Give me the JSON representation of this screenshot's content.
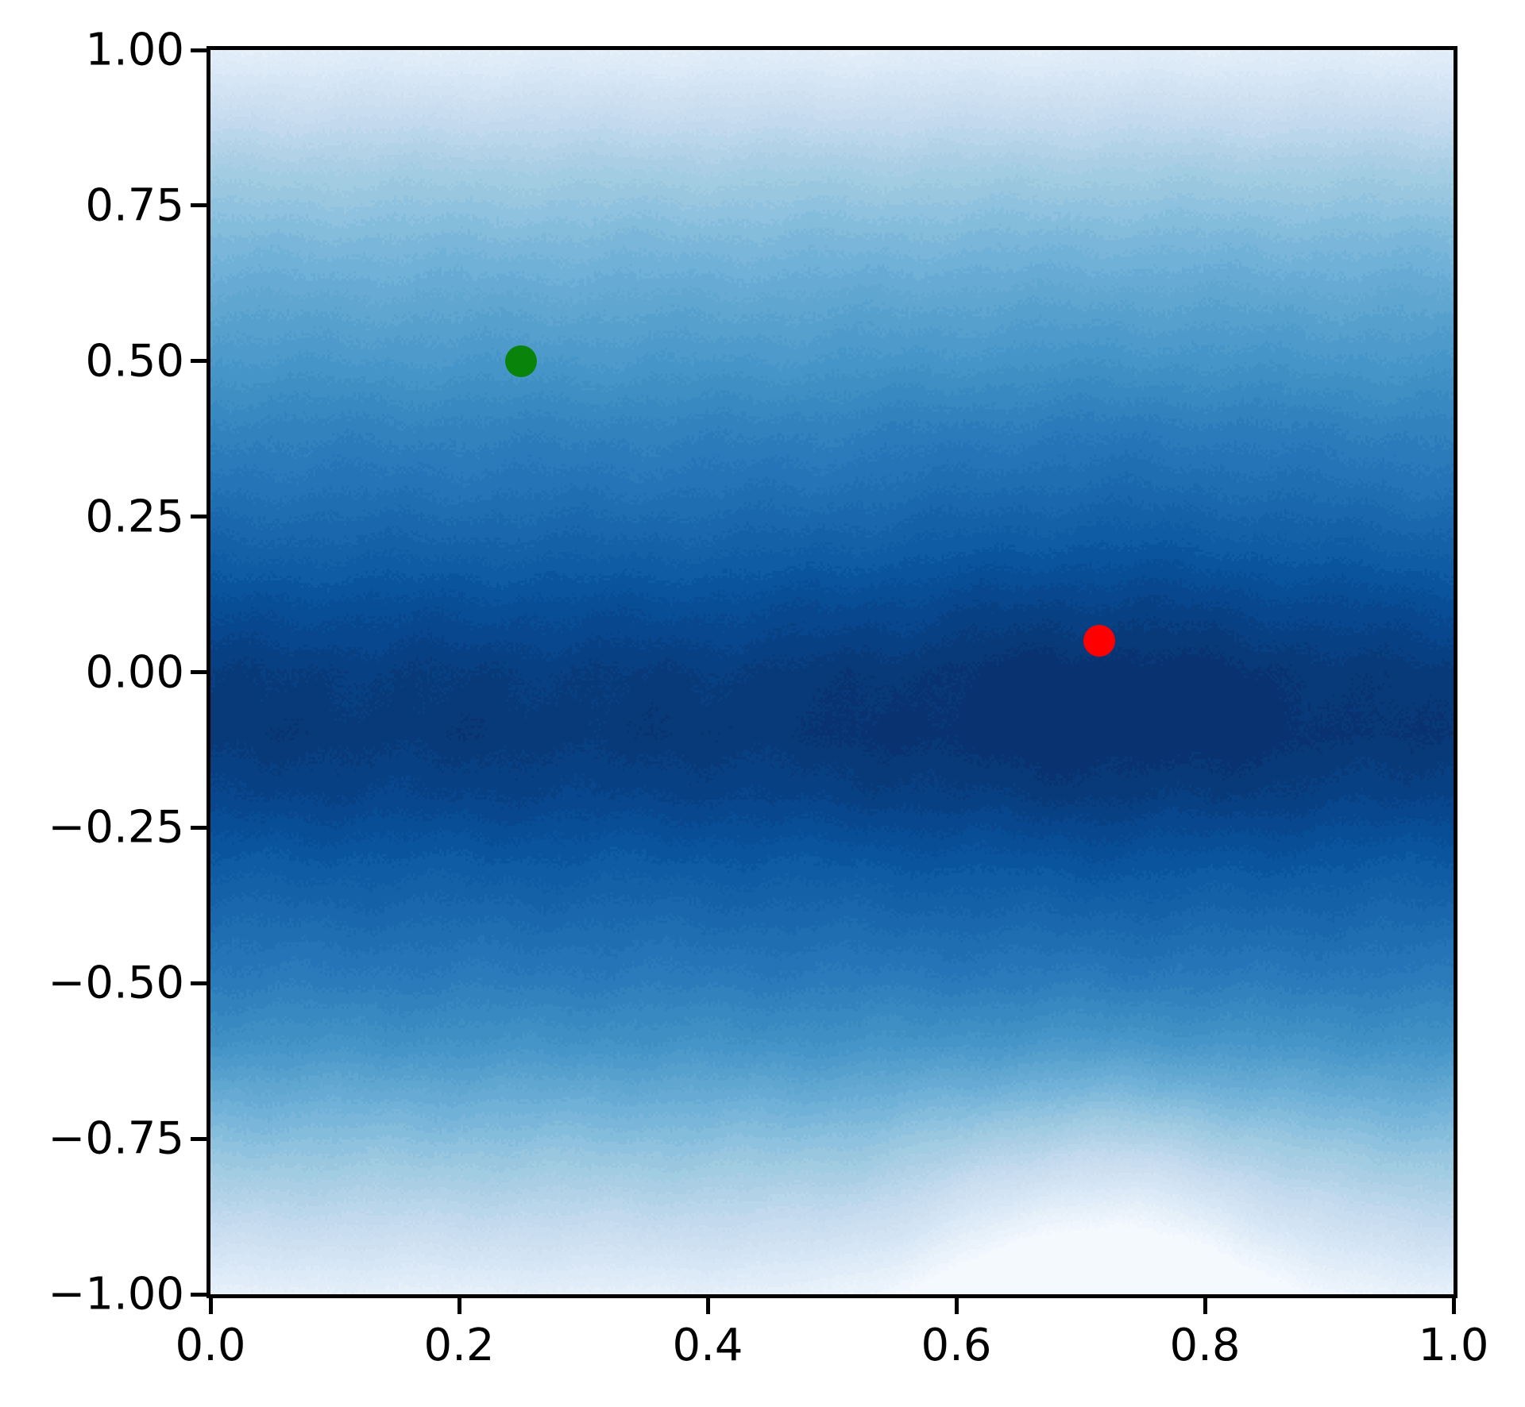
{
  "chart_data": {
    "type": "contourf-scatter",
    "title": "",
    "xlabel": "",
    "ylabel": "",
    "xlim": [
      0.0,
      1.0
    ],
    "ylim": [
      -1.0,
      1.0
    ],
    "grid": false,
    "legend": null,
    "x_ticks": [
      {
        "v": 0.0,
        "label": "0.0"
      },
      {
        "v": 0.2,
        "label": "0.2"
      },
      {
        "v": 0.4,
        "label": "0.4"
      },
      {
        "v": 0.6,
        "label": "0.6"
      },
      {
        "v": 0.8,
        "label": "0.8"
      },
      {
        "v": 1.0,
        "label": "1.0"
      }
    ],
    "y_ticks": [
      {
        "v": 1.0,
        "label": "1.00"
      },
      {
        "v": 0.75,
        "label": "0.75"
      },
      {
        "v": 0.5,
        "label": "0.50"
      },
      {
        "v": 0.25,
        "label": "0.25"
      },
      {
        "v": 0.0,
        "label": "0.00"
      },
      {
        "v": -0.25,
        "label": "−0.25"
      },
      {
        "v": -0.5,
        "label": "−0.50"
      },
      {
        "v": -0.75,
        "label": "−0.75"
      },
      {
        "v": -1.0,
        "label": "−1.00"
      }
    ],
    "colormap": "Blues",
    "colormap_stops": [
      [
        0.0,
        "#f7fbff"
      ],
      [
        0.125,
        "#deebf7"
      ],
      [
        0.25,
        "#c6dbef"
      ],
      [
        0.375,
        "#9ecae1"
      ],
      [
        0.5,
        "#6baed6"
      ],
      [
        0.625,
        "#4292c6"
      ],
      [
        0.75,
        "#2171b5"
      ],
      [
        0.875,
        "#08519c"
      ],
      [
        1.0,
        "#08306b"
      ]
    ],
    "contour_levels": 40,
    "intensity_profile": [
      [
        1.0,
        0.1
      ],
      [
        0.9,
        0.24
      ],
      [
        0.8,
        0.36
      ],
      [
        0.7,
        0.45
      ],
      [
        0.6,
        0.53
      ],
      [
        0.5,
        0.6
      ],
      [
        0.4,
        0.68
      ],
      [
        0.3,
        0.74
      ],
      [
        0.2,
        0.81
      ],
      [
        0.1,
        0.89
      ],
      [
        0.0,
        0.95
      ],
      [
        -0.1,
        0.965
      ],
      [
        -0.2,
        0.925
      ],
      [
        -0.3,
        0.85
      ],
      [
        -0.4,
        0.78
      ],
      [
        -0.5,
        0.71
      ],
      [
        -0.6,
        0.62
      ],
      [
        -0.7,
        0.49
      ],
      [
        -0.8,
        0.37
      ],
      [
        -0.9,
        0.24
      ],
      [
        -1.0,
        0.09
      ]
    ],
    "field_bumps": [
      {
        "cx": 0.72,
        "cy": -1.02,
        "sx": 0.1,
        "sy": 0.2,
        "amp": -0.28
      },
      {
        "cx": 0.72,
        "cy": 0.08,
        "sx": 0.14,
        "sy": 0.32,
        "amp": 0.045
      }
    ],
    "points": [
      {
        "name": "green",
        "x": 0.25,
        "y": 0.5,
        "color": "#0a830a",
        "radius_px": 20
      },
      {
        "name": "red",
        "x": 0.715,
        "y": 0.05,
        "color": "#ff0000",
        "radius_px": 20
      }
    ],
    "axes": {
      "spine_color": "#000000",
      "tick_color": "#000000",
      "tick_label_color": "#000000",
      "background": "#ffffff"
    }
  }
}
